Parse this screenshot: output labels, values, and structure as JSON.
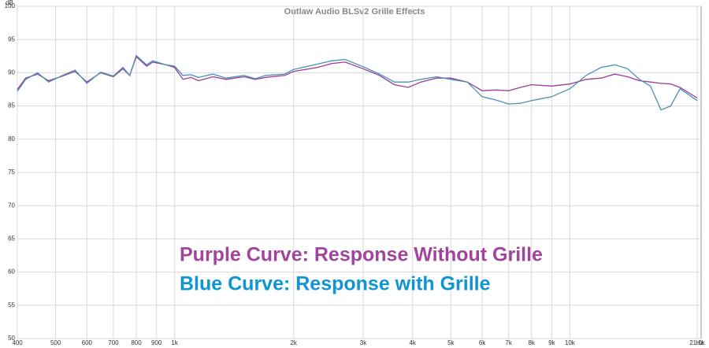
{
  "chart_data": {
    "type": "line",
    "title": "Outlaw Audio BLSv2 Grille Effects",
    "y_label": "dB",
    "x_label": "Hz",
    "xscale": "log",
    "grid": true,
    "xlim": [
      400,
      21000
    ],
    "ylim": [
      50,
      100
    ],
    "xticks": [
      400,
      500,
      600,
      700,
      800,
      900,
      {
        "value": 1000,
        "label": "1k"
      },
      {
        "value": 2000,
        "label": "2k"
      },
      {
        "value": 3000,
        "label": "3k"
      },
      {
        "value": 4000,
        "label": "4k"
      },
      {
        "value": 5000,
        "label": "5k"
      },
      {
        "value": 6000,
        "label": "6k"
      },
      {
        "value": 7000,
        "label": "7k"
      },
      {
        "value": 8000,
        "label": "8k"
      },
      {
        "value": 9000,
        "label": "9k"
      },
      {
        "value": 10000,
        "label": "10k"
      },
      {
        "value": 21000,
        "label": "21.0k"
      }
    ],
    "yticks": [
      50,
      55,
      60,
      65,
      70,
      75,
      80,
      85,
      90,
      95,
      100
    ],
    "x": [
      400,
      420,
      450,
      480,
      520,
      560,
      600,
      650,
      700,
      740,
      770,
      800,
      850,
      880,
      950,
      1000,
      1050,
      1100,
      1150,
      1250,
      1350,
      1500,
      1600,
      1700,
      1900,
      2000,
      2300,
      2500,
      2700,
      3000,
      3300,
      3600,
      3900,
      4200,
      4600,
      5000,
      5500,
      6000,
      6500,
      7000,
      7500,
      8000,
      9000,
      10000,
      11000,
      12000,
      13000,
      14000,
      15000,
      16000,
      17000,
      18000,
      19000,
      21000
    ],
    "series": [
      {
        "color": "#9b3b9b",
        "values": [
          87.5,
          89.2,
          89.8,
          88.8,
          89.5,
          90.2,
          88.6,
          90.0,
          89.4,
          90.6,
          89.6,
          92.4,
          91.0,
          91.6,
          91.2,
          90.8,
          89.0,
          89.3,
          88.8,
          89.4,
          89.0,
          89.4,
          89.0,
          89.3,
          89.6,
          90.2,
          90.8,
          91.4,
          91.6,
          90.6,
          89.6,
          88.2,
          87.8,
          88.6,
          89.2,
          89.2,
          88.6,
          87.3,
          87.4,
          87.3,
          87.8,
          88.2,
          88.0,
          88.3,
          89.0,
          89.2,
          89.8,
          89.4,
          88.8,
          88.6,
          88.4,
          88.3,
          87.8,
          86.2
        ]
      },
      {
        "color": "#4a90b0",
        "values": [
          87.2,
          89.0,
          90.0,
          88.6,
          89.6,
          90.4,
          88.4,
          90.1,
          89.5,
          90.8,
          89.6,
          92.6,
          91.2,
          91.8,
          91.2,
          91.0,
          89.6,
          89.7,
          89.3,
          89.8,
          89.2,
          89.6,
          89.1,
          89.6,
          89.8,
          90.5,
          91.3,
          91.8,
          92.0,
          90.9,
          89.8,
          88.6,
          88.6,
          89.0,
          89.4,
          89.0,
          88.6,
          86.4,
          85.9,
          85.3,
          85.4,
          85.8,
          86.4,
          87.6,
          89.6,
          90.8,
          91.2,
          90.6,
          89.0,
          88.0,
          84.4,
          85.0,
          87.6,
          85.8
        ]
      }
    ],
    "annotations": [
      {
        "text": "Purple Curve: Response Without Grille",
        "color": "#a0449c"
      },
      {
        "text": "Blue Curve: Response with Grille",
        "color": "#0e95d4"
      }
    ]
  }
}
